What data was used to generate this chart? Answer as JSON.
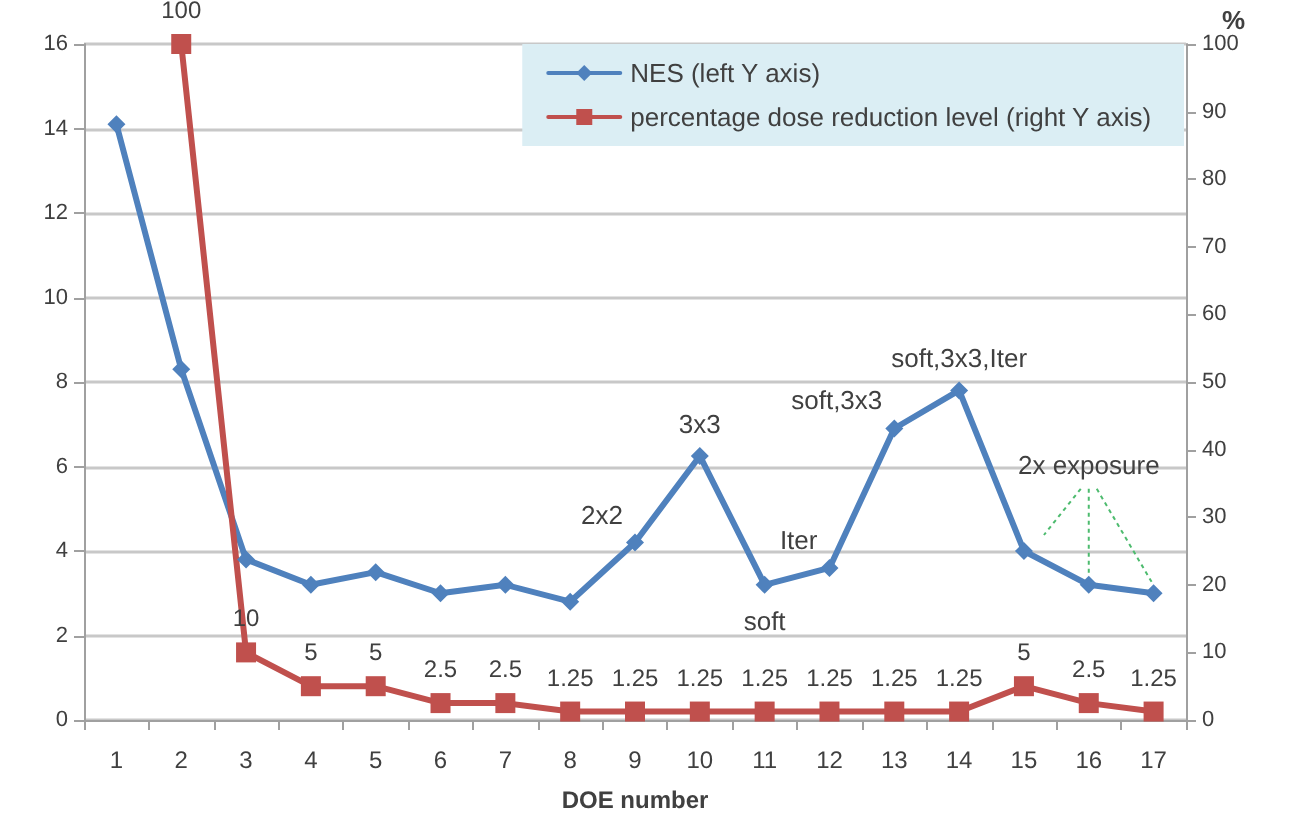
{
  "chart_data": {
    "type": "line",
    "xlabel": "DOE number",
    "y2label": "%",
    "categories": [
      "1",
      "2",
      "3",
      "4",
      "5",
      "6",
      "7",
      "8",
      "9",
      "10",
      "11",
      "12",
      "13",
      "14",
      "15",
      "16",
      "17"
    ],
    "series": [
      {
        "name": "NES (left Y axis)",
        "color": "#4f81bd",
        "marker": "diamond",
        "values": [
          14.1,
          8.3,
          3.8,
          3.2,
          3.5,
          3.0,
          3.2,
          2.8,
          4.2,
          6.25,
          3.2,
          3.6,
          6.9,
          7.8,
          4.0,
          3.2,
          3.0
        ]
      },
      {
        "name": "percentage dose reduction level (right Y axis)",
        "color": "#c0504d",
        "marker": "square",
        "axis": "y2",
        "values": [
          null,
          100,
          10,
          5,
          5,
          2.5,
          2.5,
          1.25,
          1.25,
          1.25,
          1.25,
          1.25,
          1.25,
          1.25,
          5,
          2.5,
          1.25
        ],
        "value_labels": [
          null,
          "100",
          "10",
          "5",
          "5",
          "2.5",
          "2.5",
          "1.25",
          "1.25",
          "1.25",
          "1.25",
          "1.25",
          "1.25",
          "1.25",
          "5",
          "2.5",
          "1.25"
        ]
      }
    ],
    "ylim": [
      0,
      16
    ],
    "yticks": [
      0,
      2,
      4,
      6,
      8,
      10,
      12,
      14,
      16
    ],
    "y2lim": [
      0,
      100
    ],
    "y2ticks": [
      0,
      10,
      20,
      30,
      40,
      50,
      60,
      70,
      80,
      90,
      100
    ],
    "grid": "y",
    "legend": "top right",
    "line_style": "solid",
    "annotations": [
      {
        "text": "2x2",
        "x": "9",
        "y": 4.2
      },
      {
        "text": "3x3",
        "x": "10",
        "y": 6.25
      },
      {
        "text": "soft",
        "x": "11",
        "y": 3.2
      },
      {
        "text": "Iter",
        "x": "12",
        "y": 3.6
      },
      {
        "text": "soft,3x3",
        "x": "13",
        "y": 6.9
      },
      {
        "text": "soft,3x3,Iter",
        "x": "14",
        "y": 7.8
      },
      {
        "text": "2x exposure",
        "x": "16",
        "y": 3.2
      }
    ]
  }
}
